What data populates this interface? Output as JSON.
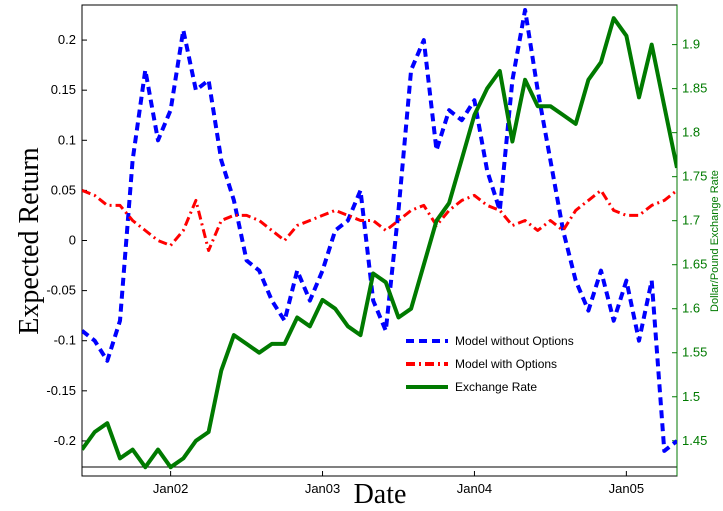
{
  "chart_data": {
    "type": "line",
    "xlabel": "Date",
    "ylabel": "Expected Return",
    "y2label": "Dollar/Pound Exchange Rate",
    "x_ticks": [
      "Jan02",
      "Jan03",
      "Jan04",
      "Jan05"
    ],
    "x_range": [
      "2001-06",
      "2005-05"
    ],
    "ylim": [
      -0.235,
      0.235
    ],
    "y_ticks": [
      -0.2,
      -0.15,
      -0.1,
      -0.05,
      0,
      0.05,
      0.1,
      0.15,
      0.2
    ],
    "y_tick_labels": [
      "-0.2",
      "-0.15",
      "-0.1",
      "-0.05",
      "0",
      "0.05",
      "0.1",
      "0.15",
      "0.2"
    ],
    "y2lim": [
      1.41,
      1.945
    ],
    "y2_ticks": [
      1.45,
      1.5,
      1.55,
      1.6,
      1.65,
      1.7,
      1.75,
      1.8,
      1.85,
      1.9
    ],
    "y2_tick_labels": [
      "1.45",
      "1.5",
      "1.55",
      "1.6",
      "1.65",
      "1.7",
      "1.75",
      "1.8",
      "1.85",
      "1.9"
    ],
    "grid": false,
    "legend_position": "bottom-right",
    "series": [
      {
        "name": "Model without Options",
        "axis": "left",
        "color": "#0000ff",
        "style": "dashed",
        "x": [
          "2001-06",
          "2001-07",
          "2001-08",
          "2001-09",
          "2001-10",
          "2001-11",
          "2001-12",
          "2002-01",
          "2002-02",
          "2002-03",
          "2002-04",
          "2002-05",
          "2002-06",
          "2002-07",
          "2002-08",
          "2002-09",
          "2002-10",
          "2002-11",
          "2002-12",
          "2003-01",
          "2003-02",
          "2003-03",
          "2003-04",
          "2003-05",
          "2003-06",
          "2003-07",
          "2003-08",
          "2003-09",
          "2003-10",
          "2003-11",
          "2003-12",
          "2004-01",
          "2004-02",
          "2004-03",
          "2004-04",
          "2004-05",
          "2004-06",
          "2004-07",
          "2004-08",
          "2004-09",
          "2004-10",
          "2004-11",
          "2004-12",
          "2005-01",
          "2005-02",
          "2005-03",
          "2005-04",
          "2005-05"
        ],
        "values": [
          -0.09,
          -0.1,
          -0.12,
          -0.08,
          0.08,
          0.17,
          0.1,
          0.13,
          0.21,
          0.15,
          0.16,
          0.08,
          0.04,
          -0.02,
          -0.03,
          -0.06,
          -0.08,
          -0.03,
          -0.06,
          -0.03,
          0.01,
          0.02,
          0.05,
          -0.06,
          -0.09,
          0.03,
          0.17,
          0.2,
          0.09,
          0.13,
          0.12,
          0.14,
          0.07,
          0.03,
          0.16,
          0.23,
          0.15,
          0.08,
          0.01,
          -0.04,
          -0.07,
          -0.03,
          -0.08,
          -0.04,
          -0.1,
          -0.04,
          -0.21,
          -0.2
        ]
      },
      {
        "name": "Model with Options",
        "axis": "left",
        "color": "#ff0000",
        "style": "dashdot",
        "x": [
          "2001-06",
          "2001-07",
          "2001-08",
          "2001-09",
          "2001-10",
          "2001-11",
          "2001-12",
          "2002-01",
          "2002-02",
          "2002-03",
          "2002-04",
          "2002-05",
          "2002-06",
          "2002-07",
          "2002-08",
          "2002-09",
          "2002-10",
          "2002-11",
          "2002-12",
          "2003-01",
          "2003-02",
          "2003-03",
          "2003-04",
          "2003-05",
          "2003-06",
          "2003-07",
          "2003-08",
          "2003-09",
          "2003-10",
          "2003-11",
          "2003-12",
          "2004-01",
          "2004-02",
          "2004-03",
          "2004-04",
          "2004-05",
          "2004-06",
          "2004-07",
          "2004-08",
          "2004-09",
          "2004-10",
          "2004-11",
          "2004-12",
          "2005-01",
          "2005-02",
          "2005-03",
          "2005-04",
          "2005-05"
        ],
        "values": [
          0.05,
          0.045,
          0.035,
          0.035,
          0.02,
          0.01,
          0.0,
          -0.005,
          0.01,
          0.04,
          -0.01,
          0.02,
          0.025,
          0.025,
          0.02,
          0.01,
          0.0,
          0.015,
          0.02,
          0.025,
          0.03,
          0.025,
          0.02,
          0.02,
          0.01,
          0.02,
          0.03,
          0.035,
          0.015,
          0.03,
          0.04,
          0.045,
          0.035,
          0.03,
          0.015,
          0.02,
          0.01,
          0.02,
          0.01,
          0.03,
          0.04,
          0.05,
          0.03,
          0.025,
          0.025,
          0.035,
          0.04,
          0.05
        ]
      },
      {
        "name": "Exchange Rate",
        "axis": "right",
        "color": "#007a00",
        "style": "solid",
        "x": [
          "2001-06",
          "2001-07",
          "2001-08",
          "2001-09",
          "2001-10",
          "2001-11",
          "2001-12",
          "2002-01",
          "2002-02",
          "2002-03",
          "2002-04",
          "2002-05",
          "2002-06",
          "2002-07",
          "2002-08",
          "2002-09",
          "2002-10",
          "2002-11",
          "2002-12",
          "2003-01",
          "2003-02",
          "2003-03",
          "2003-04",
          "2003-05",
          "2003-06",
          "2003-07",
          "2003-08",
          "2003-09",
          "2003-10",
          "2003-11",
          "2003-12",
          "2004-01",
          "2004-02",
          "2004-03",
          "2004-04",
          "2004-05",
          "2004-06",
          "2004-07",
          "2004-08",
          "2004-09",
          "2004-10",
          "2004-11",
          "2004-12",
          "2005-01",
          "2005-02",
          "2005-03",
          "2005-04",
          "2005-05"
        ],
        "values": [
          1.44,
          1.46,
          1.47,
          1.43,
          1.44,
          1.42,
          1.44,
          1.42,
          1.43,
          1.45,
          1.46,
          1.53,
          1.57,
          1.56,
          1.55,
          1.56,
          1.56,
          1.59,
          1.58,
          1.61,
          1.6,
          1.58,
          1.57,
          1.64,
          1.63,
          1.59,
          1.6,
          1.65,
          1.7,
          1.72,
          1.77,
          1.82,
          1.85,
          1.87,
          1.79,
          1.86,
          1.83,
          1.83,
          1.82,
          1.81,
          1.86,
          1.88,
          1.93,
          1.91,
          1.84,
          1.9,
          1.83,
          1.76
        ]
      }
    ]
  }
}
